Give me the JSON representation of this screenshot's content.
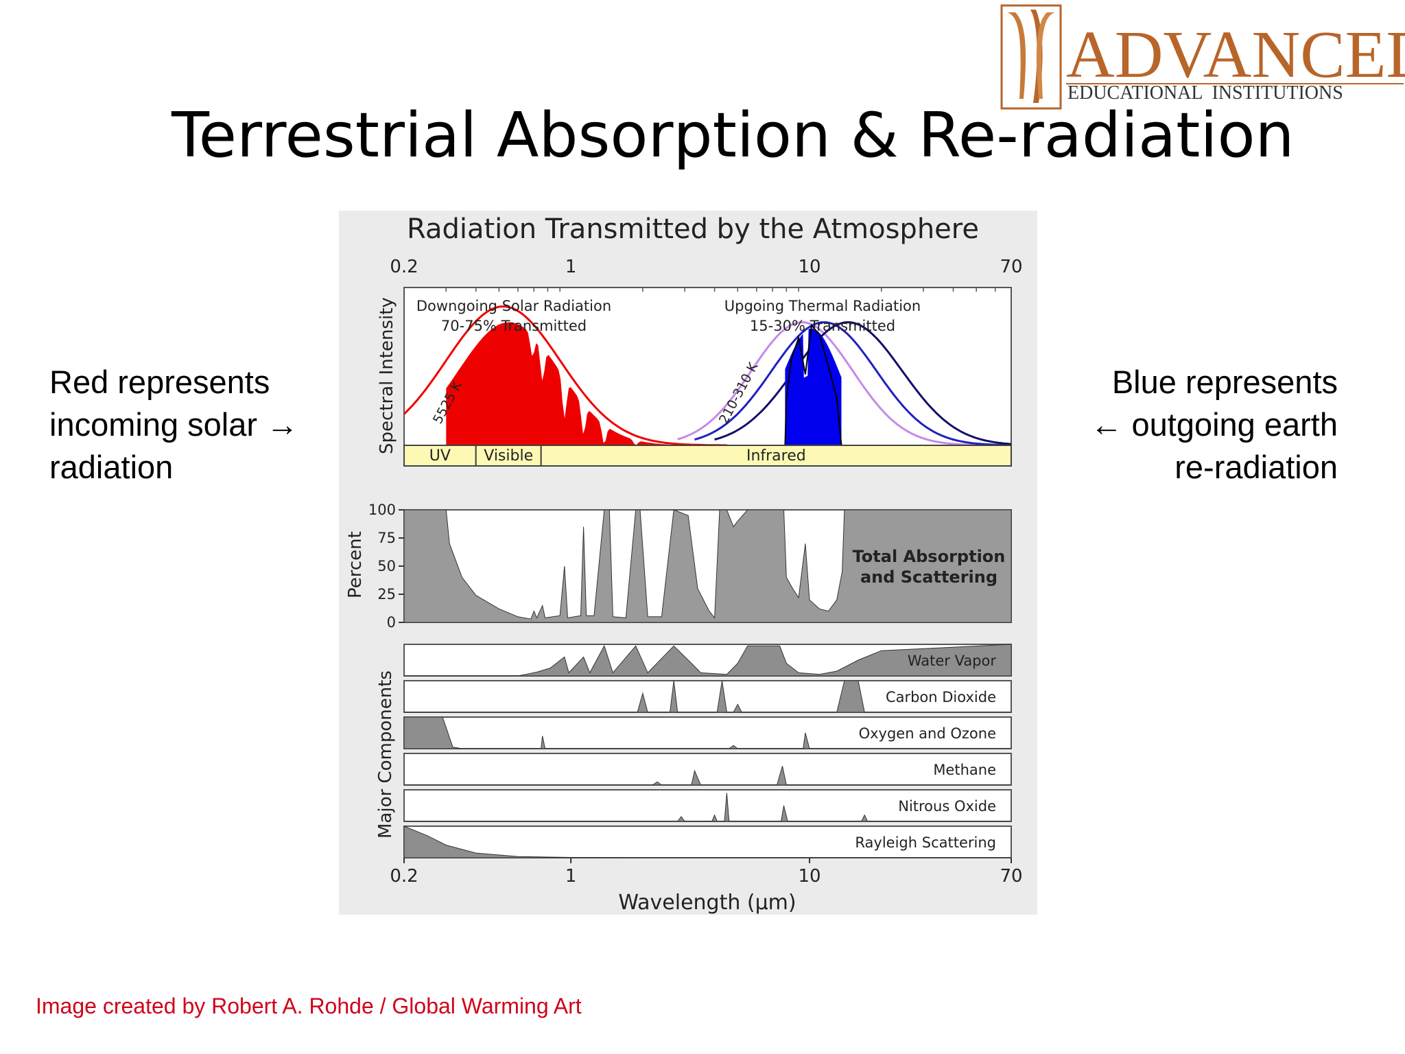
{
  "slide": {
    "title": "Terrestrial Absorption & Re-radiation",
    "left_note": "Red represents\nincoming solar →\nradiation",
    "right_note": "Blue represents\n← outgoing earth\nre-radiation",
    "credit": "Image created by Robert A. Rohde / Global Warming Art"
  },
  "logo": {
    "name": "ADVANCED",
    "tagline": "EDUCATIONAL  INSTITUTIONS",
    "color": "#b8652a"
  },
  "chart_data": {
    "type": "area",
    "title": "Radiation Transmitted by the Atmosphere",
    "xlabel": "Wavelength (µm)",
    "x_scale": "log",
    "xlim": [
      0.2,
      70
    ],
    "x_ticks": [
      "0.2",
      "1",
      "10",
      "70"
    ],
    "panels": {
      "spectral": {
        "ylabel": "Spectral Intensity",
        "solar_annotation": [
          "Downgoing Solar Radiation",
          "70-75% Transmitted"
        ],
        "thermal_annotation": [
          "Upgoing Thermal Radiation",
          "15-30% Transmitted"
        ],
        "solar_curve_label": "5525 K",
        "thermal_curve_label": "210-310 K",
        "bands": [
          {
            "label": "UV",
            "from": 0.2,
            "to": 0.4
          },
          {
            "label": "Visible",
            "from": 0.4,
            "to": 0.75
          },
          {
            "label": "Infrared",
            "from": 0.75,
            "to": 70
          }
        ],
        "colors": {
          "solar": "#ee0000",
          "thermal": "#0000ee",
          "band": "#fdf9b4"
        }
      },
      "absorption": {
        "ylabel": "Percent",
        "y_ticks": [
          0,
          25,
          50,
          75,
          100
        ],
        "label": [
          "Total Absorption",
          "and Scattering"
        ],
        "fill_color": "#9a9a9a",
        "points": [
          [
            0.2,
            100
          ],
          [
            0.3,
            100
          ],
          [
            0.31,
            70
          ],
          [
            0.35,
            40
          ],
          [
            0.4,
            24
          ],
          [
            0.5,
            12
          ],
          [
            0.6,
            5
          ],
          [
            0.68,
            3
          ],
          [
            0.7,
            10
          ],
          [
            0.72,
            4
          ],
          [
            0.76,
            15
          ],
          [
            0.78,
            4
          ],
          [
            0.9,
            6
          ],
          [
            0.94,
            50
          ],
          [
            0.97,
            4
          ],
          [
            1.1,
            6
          ],
          [
            1.13,
            85
          ],
          [
            1.16,
            6
          ],
          [
            1.25,
            6
          ],
          [
            1.38,
            100
          ],
          [
            1.45,
            100
          ],
          [
            1.5,
            5
          ],
          [
            1.7,
            4
          ],
          [
            1.87,
            100
          ],
          [
            1.95,
            100
          ],
          [
            2.1,
            5
          ],
          [
            2.4,
            5
          ],
          [
            2.7,
            100
          ],
          [
            3.1,
            95
          ],
          [
            3.4,
            30
          ],
          [
            3.8,
            10
          ],
          [
            4.0,
            4
          ],
          [
            4.2,
            100
          ],
          [
            4.5,
            100
          ],
          [
            4.8,
            85
          ],
          [
            5.0,
            90
          ],
          [
            5.5,
            100
          ],
          [
            6.0,
            100
          ],
          [
            7.0,
            100
          ],
          [
            7.8,
            100
          ],
          [
            8.0,
            40
          ],
          [
            8.5,
            30
          ],
          [
            9.0,
            22
          ],
          [
            9.6,
            70
          ],
          [
            10.0,
            20
          ],
          [
            11,
            12
          ],
          [
            12,
            10
          ],
          [
            13,
            20
          ],
          [
            13.7,
            45
          ],
          [
            14,
            100
          ],
          [
            17,
            100
          ],
          [
            20,
            100
          ],
          [
            70,
            100
          ]
        ]
      },
      "components": [
        {
          "name": "Water Vapor",
          "points": [
            [
              0.2,
              0
            ],
            [
              0.6,
              0
            ],
            [
              0.72,
              12
            ],
            [
              0.82,
              25
            ],
            [
              0.94,
              60
            ],
            [
              0.98,
              10
            ],
            [
              1.13,
              60
            ],
            [
              1.2,
              10
            ],
            [
              1.38,
              95
            ],
            [
              1.5,
              10
            ],
            [
              1.87,
              95
            ],
            [
              2.1,
              10
            ],
            [
              2.7,
              95
            ],
            [
              3.2,
              40
            ],
            [
              3.5,
              10
            ],
            [
              4.5,
              5
            ],
            [
              5.0,
              40
            ],
            [
              5.5,
              95
            ],
            [
              7.5,
              95
            ],
            [
              8,
              40
            ],
            [
              9,
              10
            ],
            [
              11,
              5
            ],
            [
              13,
              15
            ],
            [
              16,
              50
            ],
            [
              20,
              80
            ],
            [
              70,
              100
            ]
          ]
        },
        {
          "name": "Carbon Dioxide",
          "points": [
            [
              0.2,
              0
            ],
            [
              1.9,
              0
            ],
            [
              2.0,
              60
            ],
            [
              2.1,
              0
            ],
            [
              2.6,
              0
            ],
            [
              2.7,
              100
            ],
            [
              2.8,
              0
            ],
            [
              4.1,
              0
            ],
            [
              4.3,
              100
            ],
            [
              4.5,
              0
            ],
            [
              4.8,
              0
            ],
            [
              5.0,
              25
            ],
            [
              5.2,
              0
            ],
            [
              13,
              0
            ],
            [
              14,
              100
            ],
            [
              16,
              100
            ],
            [
              17,
              0
            ],
            [
              70,
              0
            ]
          ]
        },
        {
          "name": "Oxygen and Ozone",
          "points": [
            [
              0.2,
              100
            ],
            [
              0.29,
              100
            ],
            [
              0.32,
              5
            ],
            [
              0.35,
              0
            ],
            [
              0.75,
              0
            ],
            [
              0.76,
              40
            ],
            [
              0.78,
              0
            ],
            [
              4.6,
              0
            ],
            [
              4.8,
              10
            ],
            [
              5.0,
              0
            ],
            [
              9.4,
              0
            ],
            [
              9.6,
              50
            ],
            [
              10,
              0
            ],
            [
              70,
              0
            ]
          ]
        },
        {
          "name": "Methane",
          "points": [
            [
              0.2,
              0
            ],
            [
              2.2,
              0
            ],
            [
              2.3,
              10
            ],
            [
              2.4,
              0
            ],
            [
              3.2,
              0
            ],
            [
              3.3,
              45
            ],
            [
              3.5,
              0
            ],
            [
              7.3,
              0
            ],
            [
              7.7,
              60
            ],
            [
              8,
              0
            ],
            [
              70,
              0
            ]
          ]
        },
        {
          "name": "Nitrous Oxide",
          "points": [
            [
              0.2,
              0
            ],
            [
              2.8,
              0
            ],
            [
              2.9,
              15
            ],
            [
              3.0,
              0
            ],
            [
              3.9,
              0
            ],
            [
              4.0,
              20
            ],
            [
              4.1,
              0
            ],
            [
              4.4,
              0
            ],
            [
              4.5,
              90
            ],
            [
              4.6,
              0
            ],
            [
              7.6,
              0
            ],
            [
              7.8,
              50
            ],
            [
              8.1,
              0
            ],
            [
              16.5,
              0
            ],
            [
              17,
              20
            ],
            [
              17.5,
              0
            ],
            [
              70,
              0
            ]
          ]
        },
        {
          "name": "Rayleigh Scattering",
          "points": [
            [
              0.2,
              100
            ],
            [
              0.25,
              70
            ],
            [
              0.3,
              40
            ],
            [
              0.4,
              15
            ],
            [
              0.6,
              4
            ],
            [
              1,
              1
            ],
            [
              2,
              0
            ],
            [
              70,
              0
            ]
          ]
        }
      ]
    }
  }
}
